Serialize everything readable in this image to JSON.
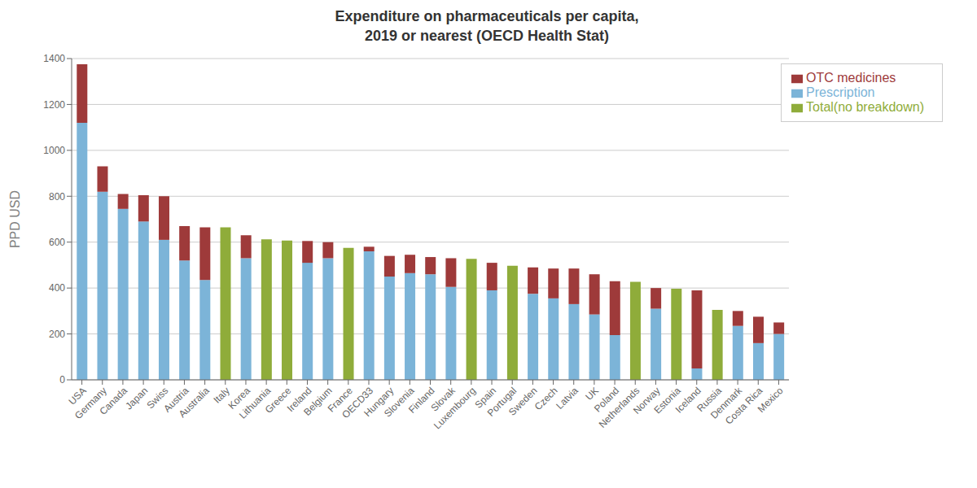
{
  "chart_data": {
    "type": "bar",
    "title": "Expenditure on pharmaceuticals per capita,\n2019 or nearest (OECD Health Stat)",
    "ylabel": "PPD USD",
    "categories": [
      "USA",
      "Germany",
      "Canada",
      "Japan",
      "Swiss",
      "Austria",
      "Australia",
      "Italy",
      "Korea",
      "Lithuania",
      "Greece",
      "Ireland",
      "Belgium",
      "France",
      "OECD33",
      "Hungary",
      "Slovenia",
      "Finland",
      "Slovak",
      "Luxembourg",
      "Spain",
      "Portugal",
      "Sweden",
      "Czech",
      "Latvia",
      "UK",
      "Poland",
      "Netherlands",
      "Norway",
      "Estonia",
      "Iceland",
      "Russia",
      "Denmark",
      "Costa Rica",
      "Mexico"
    ],
    "series": [
      {
        "name": "Prescription",
        "color": "#7cb4d8",
        "values": [
          1120,
          820,
          745,
          690,
          610,
          520,
          435,
          null,
          530,
          null,
          null,
          510,
          530,
          null,
          560,
          450,
          465,
          460,
          405,
          null,
          390,
          null,
          375,
          355,
          330,
          285,
          195,
          null,
          310,
          null,
          50,
          null,
          235,
          160,
          200
        ]
      },
      {
        "name": "OTC medicines",
        "color": "#9e3a3a",
        "values": [
          255,
          110,
          65,
          115,
          190,
          150,
          230,
          null,
          100,
          null,
          null,
          95,
          70,
          null,
          20,
          90,
          80,
          75,
          125,
          null,
          120,
          null,
          115,
          130,
          155,
          175,
          235,
          null,
          90,
          null,
          340,
          null,
          65,
          115,
          50
        ]
      },
      {
        "name": "Total(no breakdown)",
        "color": "#8fac3a",
        "values": [
          null,
          null,
          null,
          null,
          null,
          null,
          null,
          665,
          null,
          612,
          607,
          null,
          null,
          575,
          null,
          null,
          null,
          null,
          null,
          527,
          null,
          497,
          null,
          null,
          null,
          null,
          null,
          427,
          null,
          397,
          null,
          305,
          null,
          null,
          null
        ]
      }
    ],
    "stacked": true,
    "ylim": [
      0,
      1400
    ],
    "yticks": [
      0,
      200,
      400,
      600,
      800,
      1000,
      1200,
      1400
    ],
    "grid": true,
    "legend": "upper right"
  }
}
